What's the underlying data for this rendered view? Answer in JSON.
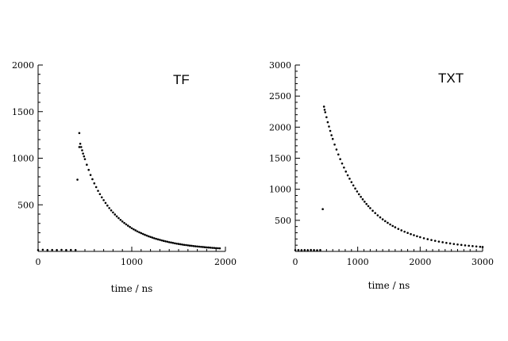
{
  "chart_data": [
    {
      "type": "scatter",
      "title": "TF",
      "xlabel": "time / ns",
      "ylabel": "",
      "xlim": [
        0,
        2000
      ],
      "ylim": [
        0,
        2000
      ],
      "xticks": [
        0,
        1000,
        2000
      ],
      "yticks": [
        500,
        1000,
        1500,
        2000
      ],
      "xtick_labels": [
        "0",
        "1000",
        "2000"
      ],
      "ytick_labels": [
        "500",
        "1000",
        "1500",
        "2000"
      ],
      "minor_xticks": [
        100,
        200,
        300,
        400,
        500,
        600,
        700,
        800,
        900,
        1100,
        1200,
        1300,
        1400,
        1500,
        1600,
        1700,
        1800,
        1900
      ],
      "minor_yticks": [
        100,
        200,
        300,
        400,
        600,
        700,
        800,
        900,
        1100,
        1200,
        1300,
        1400,
        1600,
        1700,
        1800,
        1900
      ],
      "grid": false,
      "legend": "none",
      "series": [
        {
          "x": [
            0,
            50,
            100,
            150,
            200,
            250,
            300,
            350,
            400,
            420,
            440,
            440,
            450,
            460,
            470,
            480,
            490,
            500,
            520,
            540,
            560,
            580,
            600,
            620,
            640,
            660,
            680,
            700,
            720,
            740,
            760,
            780,
            800,
            820,
            840,
            860,
            880,
            900,
            920,
            940,
            960,
            980,
            1000,
            1020,
            1040,
            1060,
            1080,
            1100,
            1120,
            1140,
            1160,
            1180,
            1200,
            1220,
            1240,
            1260,
            1280,
            1300,
            1320,
            1340,
            1360,
            1380,
            1400,
            1420,
            1440,
            1460,
            1480,
            1500,
            1520,
            1540,
            1560,
            1580,
            1600,
            1620,
            1640,
            1660,
            1680,
            1700,
            1720,
            1740,
            1760,
            1780,
            1800,
            1820,
            1840,
            1860,
            1880,
            1900,
            1920,
            1940
          ],
          "y": [
            15,
            18,
            14,
            16,
            15,
            17,
            14,
            16,
            15,
            770,
            1270,
            1120,
            1155,
            1120,
            1085,
            1050,
            1020,
            990,
            930,
            875,
            820,
            775,
            730,
            690,
            650,
            615,
            580,
            550,
            520,
            492,
            465,
            440,
            418,
            396,
            376,
            357,
            338,
            321,
            305,
            290,
            276,
            262,
            249,
            237,
            226,
            215,
            205,
            196,
            187,
            178,
            170,
            162,
            155,
            148,
            141,
            135,
            129,
            124,
            118,
            113,
            108,
            104,
            99,
            95,
            91,
            87,
            83,
            80,
            77,
            73,
            70,
            68,
            65,
            62,
            60,
            57,
            55,
            53,
            51,
            49,
            47,
            45,
            43,
            42,
            40,
            38,
            37,
            35,
            34,
            33
          ]
        }
      ]
    },
    {
      "type": "scatter",
      "title": "TXT",
      "xlabel": "time / ns",
      "ylabel": "",
      "xlim": [
        0,
        3000
      ],
      "ylim": [
        0,
        3000
      ],
      "xticks": [
        0,
        1000,
        2000,
        3000
      ],
      "yticks": [
        500,
        1000,
        1500,
        2000,
        2500,
        3000
      ],
      "xtick_labels": [
        "0",
        "1000",
        "2000",
        "3000"
      ],
      "ytick_labels": [
        "500",
        "1000",
        "1500",
        "2000",
        "2500",
        "3000"
      ],
      "minor_xticks": [
        100,
        200,
        300,
        400,
        500,
        600,
        700,
        800,
        900,
        1100,
        1200,
        1300,
        1400,
        1500,
        1600,
        1700,
        1800,
        1900,
        2100,
        2200,
        2300,
        2400,
        2500,
        2600,
        2700,
        2800,
        2900
      ],
      "minor_yticks": [
        100,
        200,
        300,
        400,
        600,
        700,
        800,
        900,
        1100,
        1200,
        1300,
        1400,
        1600,
        1700,
        1800,
        1900,
        2100,
        2200,
        2300,
        2400,
        2600,
        2700,
        2800,
        2900
      ],
      "grid": false,
      "legend": "none",
      "series": [
        {
          "x": [
            0,
            50,
            100,
            150,
            200,
            250,
            300,
            350,
            400,
            440,
            460,
            470,
            480,
            500,
            520,
            540,
            560,
            580,
            600,
            630,
            660,
            690,
            720,
            750,
            780,
            810,
            840,
            870,
            900,
            930,
            960,
            990,
            1020,
            1050,
            1080,
            1110,
            1140,
            1170,
            1200,
            1240,
            1280,
            1320,
            1360,
            1400,
            1440,
            1480,
            1520,
            1560,
            1600,
            1650,
            1700,
            1750,
            1800,
            1850,
            1900,
            1950,
            2000,
            2060,
            2120,
            2180,
            2240,
            2300,
            2360,
            2420,
            2480,
            2540,
            2600,
            2660,
            2720,
            2780,
            2840,
            2900,
            2960,
            3000
          ],
          "y": [
            20,
            22,
            18,
            21,
            19,
            23,
            20,
            18,
            21,
            680,
            2330,
            2280,
            2240,
            2160,
            2080,
            2010,
            1940,
            1870,
            1810,
            1720,
            1640,
            1560,
            1485,
            1415,
            1350,
            1285,
            1225,
            1170,
            1115,
            1062,
            1012,
            965,
            920,
            878,
            838,
            800,
            763,
            729,
            696,
            655,
            617,
            581,
            548,
            516,
            487,
            460,
            434,
            410,
            388,
            362,
            339,
            317,
            297,
            278,
            261,
            244,
            229,
            212,
            197,
            183,
            170,
            158,
            147,
            137,
            128,
            119,
            111,
            104,
            97,
            91,
            85,
            79,
            74,
            71
          ]
        }
      ]
    }
  ]
}
